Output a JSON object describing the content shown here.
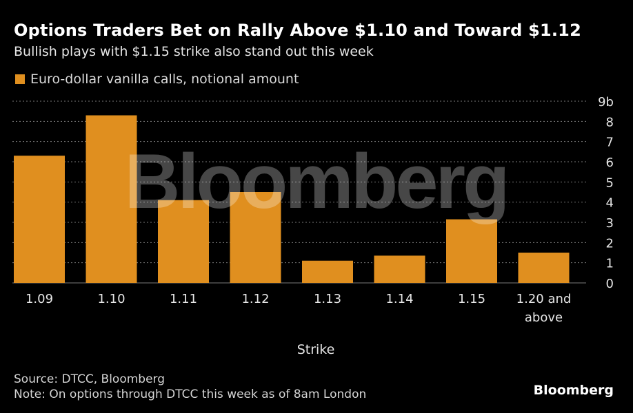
{
  "title": "Options Traders Bet on Rally Above $1.10 and Toward $1.12",
  "subtitle": "Bullish plays with $1.15 strike also stand out this week",
  "legend": {
    "label": "Euro-dollar vanilla calls, notional amount"
  },
  "watermark": "Bloomberg",
  "source": "Source: DTCC, Bloomberg",
  "note": "Note: On options through DTCC this week as of 8am London",
  "brand": "Bloomberg",
  "colors": {
    "bar": "#e08f1f",
    "background": "#000000",
    "grid": "#7a7a7a",
    "text": "#ffffff"
  },
  "chart_data": {
    "type": "bar",
    "categories": [
      "1.09",
      "1.10",
      "1.11",
      "1.12",
      "1.13",
      "1.14",
      "1.15",
      "1.20 and above"
    ],
    "series": [
      {
        "name": "Euro-dollar vanilla calls, notional amount",
        "values": [
          6.3,
          8.3,
          4.1,
          4.5,
          1.1,
          1.35,
          3.15,
          1.5
        ]
      }
    ],
    "xlabel": "Strike",
    "ylim": [
      0,
      9
    ],
    "yticks": [
      "0",
      "1",
      "2",
      "3",
      "4",
      "5",
      "6",
      "7",
      "8",
      "9b"
    ],
    "y_axis_side": "right",
    "grid": true,
    "legend_position": "top-left"
  }
}
